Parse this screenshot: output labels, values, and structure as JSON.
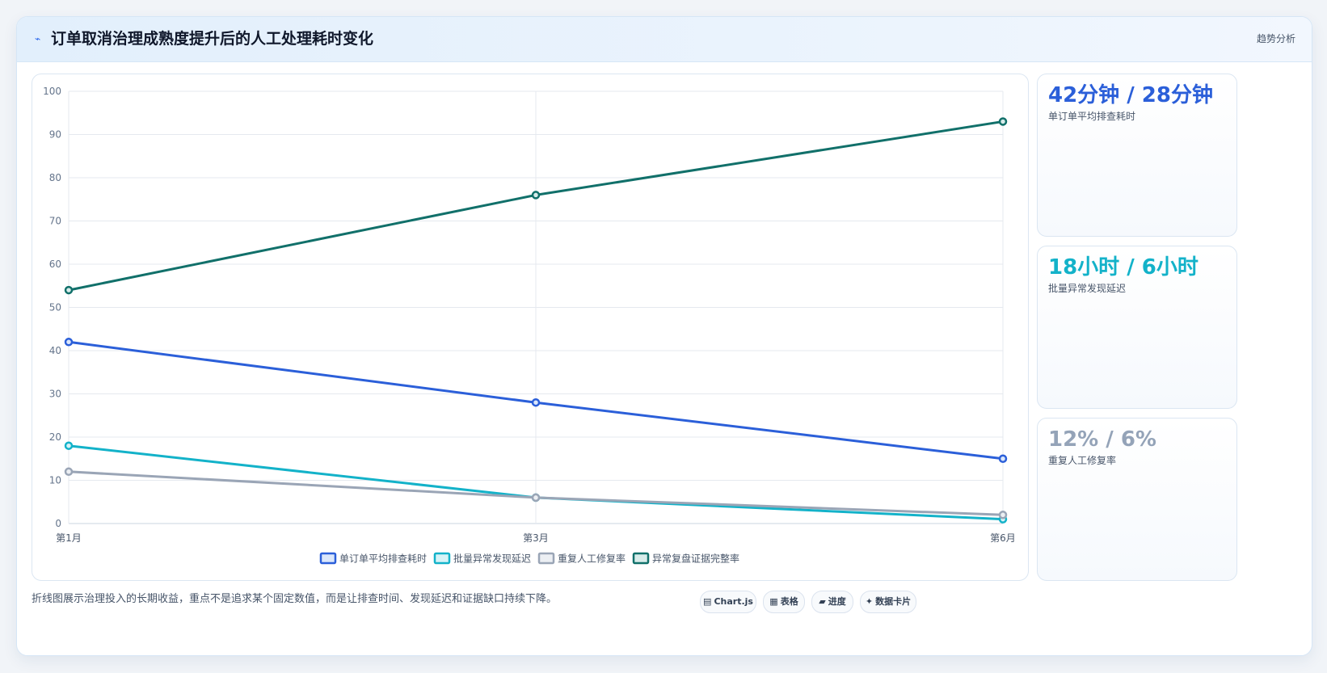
{
  "header": {
    "icon": "trend-icon",
    "title": "订单取消治理成熟度提升后的人工处理耗时变化",
    "tag": "趋势分析"
  },
  "chart_data": {
    "type": "line",
    "categories": [
      "第1月",
      "第3月",
      "第6月"
    ],
    "ylim": [
      0,
      100
    ],
    "yticks": [
      0,
      10,
      20,
      30,
      40,
      50,
      60,
      70,
      80,
      90,
      100
    ],
    "grid": true,
    "legend_position": "bottom",
    "series": [
      {
        "name": "单订单平均排查耗时",
        "values": [
          42,
          28,
          15
        ],
        "color": "#2b5fd9",
        "fill": "#dbe7fb"
      },
      {
        "name": "批量异常发现延迟",
        "values": [
          18,
          6,
          1
        ],
        "color": "#13b2c9",
        "fill": "#d6f3f7"
      },
      {
        "name": "重复人工修复率",
        "values": [
          12,
          6,
          2
        ],
        "color": "#9aa5b6",
        "fill": "#eceff3"
      },
      {
        "name": "异常复盘证据完整率",
        "values": [
          54,
          76,
          93
        ],
        "color": "#11706a",
        "fill": "#d8ecea"
      }
    ]
  },
  "stats": [
    {
      "value": "42分钟 / 28分钟",
      "label": "单订单平均排查耗时",
      "color": "#2b5fd9"
    },
    {
      "value": "18小时 / 6小时",
      "label": "批量异常发现延迟",
      "color": "#13b2c9"
    },
    {
      "value": "12% / 6%",
      "label": "重复人工修复率",
      "color": "#94a3b8"
    }
  ],
  "footer": {
    "note": "折线图展示治理投入的长期收益，重点不是追求某个固定数值，而是让排查时间、发现延迟和证据缺口持续下降。",
    "pills": [
      {
        "icon": "▤",
        "label": "Chart.js"
      },
      {
        "icon": "▦",
        "label": "表格"
      },
      {
        "icon": "▰",
        "label": "进度"
      },
      {
        "icon": "✦",
        "label": "数据卡片"
      }
    ]
  }
}
